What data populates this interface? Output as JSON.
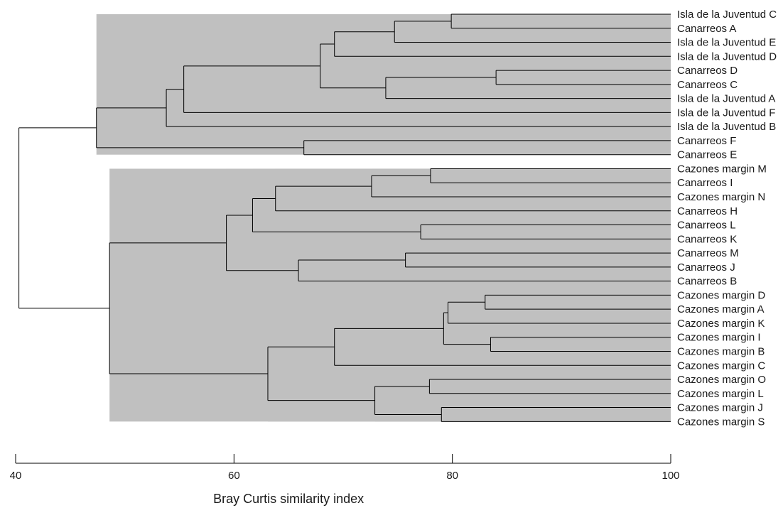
{
  "chart_data": {
    "type": "dendrogram",
    "xlabel": "Bray Curtis similarity index",
    "xlim": [
      40,
      100
    ],
    "xticks": [
      40,
      60,
      80,
      100
    ],
    "shade_color": "#c0c0c0",
    "line_color": "#000000",
    "leaves": [
      "Isla de la Juventud C",
      "Canarreos A",
      "Isla de la Juventud E",
      "Isla de la Juventud D",
      "Canarreos D",
      "Canarreos C",
      "Isla de la Juventud A",
      "Isla de la Juventud F",
      "Isla de la Juventud B",
      "Canarreos F",
      "Canarreos E",
      "Cazones margin M",
      "Canarreos I",
      "Cazones margin N",
      "Canarreos H",
      "Canarreos L",
      "Canarreos K",
      "Canarreos M",
      "Canarreos J",
      "Canarreos B",
      "Cazones margin D",
      "Cazones margin A",
      "Cazones margin K",
      "Cazones margin I",
      "Cazones margin B",
      "Cazones margin C",
      "Cazones margin O",
      "Cazones margin L",
      "Cazones margin J",
      "Cazones margin S"
    ],
    "tree": {
      "s": 40.3,
      "c": [
        {
          "s": 47.4,
          "c": [
            {
              "s": 53.8,
              "c": [
                {
                  "s": 55.4,
                  "c": [
                    {
                      "s": 67.9,
                      "c": [
                        {
                          "s": 69.2,
                          "c": [
                            {
                              "s": 74.7,
                              "c": [
                                {
                                  "s": 79.9,
                                  "c": [
                                    {
                                      "l": 0
                                    },
                                    {
                                      "l": 1
                                    }
                                  ]
                                },
                                {
                                  "l": 2
                                }
                              ]
                            },
                            {
                              "l": 3
                            }
                          ]
                        },
                        {
                          "s": 73.9,
                          "c": [
                            {
                              "s": 84.0,
                              "c": [
                                {
                                  "l": 4
                                },
                                {
                                  "l": 5
                                }
                              ]
                            },
                            {
                              "l": 6
                            }
                          ]
                        }
                      ]
                    },
                    {
                      "l": 7
                    }
                  ]
                },
                {
                  "l": 8
                }
              ]
            },
            {
              "s": 66.4,
              "c": [
                {
                  "l": 9
                },
                {
                  "l": 10
                }
              ]
            }
          ]
        },
        {
          "s": 48.6,
          "c": [
            {
              "s": 59.3,
              "c": [
                {
                  "s": 61.7,
                  "c": [
                    {
                      "s": 63.8,
                      "c": [
                        {
                          "s": 72.6,
                          "c": [
                            {
                              "s": 78.0,
                              "c": [
                                {
                                  "l": 11
                                },
                                {
                                  "l": 12
                                }
                              ]
                            },
                            {
                              "l": 13
                            }
                          ]
                        },
                        {
                          "l": 14
                        }
                      ]
                    },
                    {
                      "s": 77.1,
                      "c": [
                        {
                          "l": 15
                        },
                        {
                          "l": 16
                        }
                      ]
                    }
                  ]
                },
                {
                  "s": 65.9,
                  "c": [
                    {
                      "s": 75.7,
                      "c": [
                        {
                          "l": 17
                        },
                        {
                          "l": 18
                        }
                      ]
                    },
                    {
                      "l": 19
                    }
                  ]
                }
              ]
            },
            {
              "s": 63.1,
              "c": [
                {
                  "s": 69.2,
                  "c": [
                    {
                      "s": 79.2,
                      "c": [
                        {
                          "s": 79.6,
                          "c": [
                            {
                              "s": 83.0,
                              "c": [
                                {
                                  "l": 20
                                },
                                {
                                  "l": 21
                                }
                              ]
                            },
                            {
                              "l": 22
                            }
                          ]
                        },
                        {
                          "s": 83.5,
                          "c": [
                            {
                              "l": 23
                            },
                            {
                              "l": 24
                            }
                          ]
                        }
                      ]
                    },
                    {
                      "l": 25
                    }
                  ]
                },
                {
                  "s": 72.9,
                  "c": [
                    {
                      "s": 77.9,
                      "c": [
                        {
                          "l": 26
                        },
                        {
                          "l": 27
                        }
                      ]
                    },
                    {
                      "s": 79.0,
                      "c": [
                        {
                          "l": 28
                        },
                        {
                          "l": 29
                        }
                      ]
                    }
                  ]
                }
              ]
            }
          ]
        }
      ]
    }
  }
}
